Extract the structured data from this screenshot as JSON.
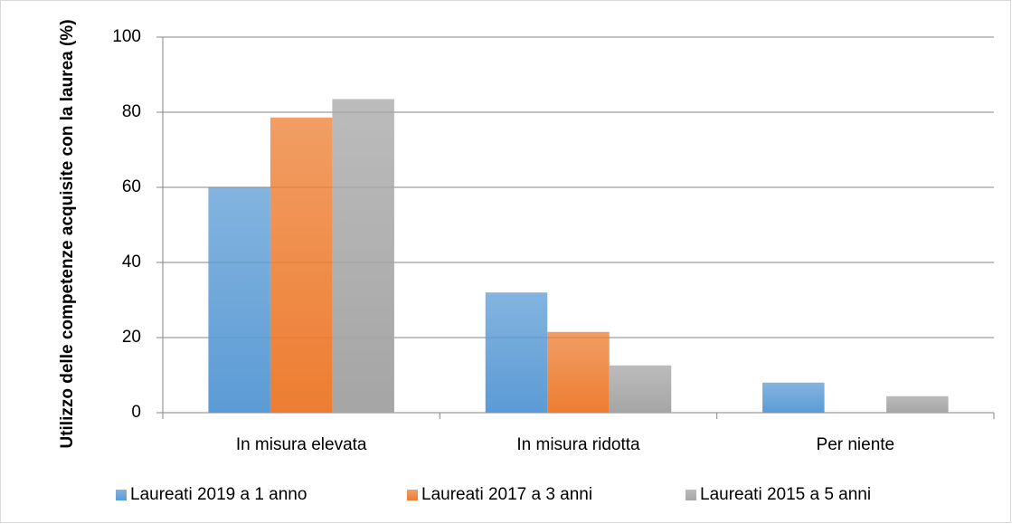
{
  "chart_data": {
    "type": "bar",
    "ylabel": "Utilizzo delle competenze acquisite con la laurea (%)",
    "categories": [
      "In misura elevata",
      "In misura ridotta",
      "Per niente"
    ],
    "series": [
      {
        "name": "Laureati 2019 a 1 anno",
        "color": "#5b9bd5",
        "values": [
          60,
          32,
          8
        ]
      },
      {
        "name": "Laureati 2017 a 3 anni",
        "color": "#ed7d31",
        "values": [
          78.6,
          21.5,
          0
        ]
      },
      {
        "name": "Laureati 2015 a 5 anni",
        "color": "#a5a5a5",
        "values": [
          83.5,
          12.6,
          4.4
        ]
      }
    ],
    "ylim": [
      0,
      100
    ],
    "yticks": [
      0,
      20,
      40,
      60,
      80,
      100
    ],
    "grid": true,
    "legend": "bottom"
  }
}
